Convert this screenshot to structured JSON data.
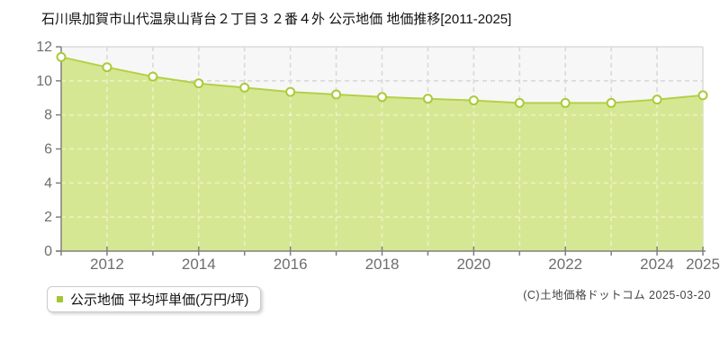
{
  "title": "石川県加賀市山代温泉山背台２丁目３２番４外 公示地価 地価推移[2011-2025]",
  "legend": {
    "label": "公示地価 平均坪単価(万円/坪)",
    "swatch_color": "#a3c832"
  },
  "copyright": "(C)土地価格ドットコム 2025-03-20",
  "chart_data": {
    "type": "area",
    "title": "石川県加賀市山代温泉山背台２丁目３２番４外 公示地価 地価推移[2011-2025]",
    "x": [
      2011,
      2012,
      2013,
      2014,
      2015,
      2016,
      2017,
      2018,
      2019,
      2020,
      2021,
      2022,
      2023,
      2024,
      2025
    ],
    "series": [
      {
        "name": "公示地価 平均坪単価(万円/坪)",
        "values": [
          11.4,
          10.8,
          10.25,
          9.85,
          9.6,
          9.35,
          9.2,
          9.05,
          8.95,
          8.85,
          8.7,
          8.7,
          8.7,
          8.9,
          9.15
        ]
      }
    ],
    "ylabel": "平均坪単価(万円/坪)",
    "xlabel": "",
    "ylim": [
      0,
      12
    ],
    "yticks": [
      0,
      2,
      4,
      6,
      8,
      10,
      12
    ],
    "xtick_labels": [
      "2012",
      "2014",
      "2016",
      "2018",
      "2020",
      "2022",
      "2024",
      "2025"
    ],
    "grid": true,
    "grid_style": "dashed",
    "legend_position": "bottom-left",
    "colors": {
      "plot_bg": "#f7f7f7",
      "grid": "#d9d9d9",
      "frame": "#dcdcdc",
      "axis": "#808080",
      "tick_label": "#6e6e6e",
      "area_fill": "#d6e793",
      "line": "#b3d147",
      "marker_fill": "#ffffff",
      "marker_stroke": "#a9cb3a",
      "inner_grid_overlay": "rgba(255,255,255,0.45)"
    }
  }
}
